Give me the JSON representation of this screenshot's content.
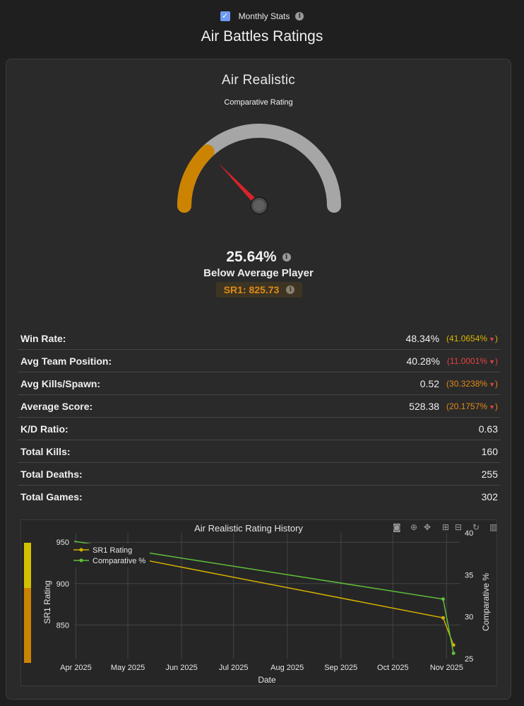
{
  "header": {
    "monthly_stats_label": "Monthly Stats",
    "monthly_stats_checked": true,
    "page_title": "Air Battles Ratings"
  },
  "card": {
    "mode_title": "Air Realistic",
    "gauge_label": "Comparative Rating",
    "gauge_value_fraction": 0.2564,
    "comparative_pct": "25.64%",
    "player_class": "Below Average Player",
    "sr1_text": "SR1: 825.73"
  },
  "colors": {
    "accent_orange": "#cc8400",
    "gauge_track": "#a6a6a6",
    "needle": "#d8232a",
    "delta_yellow": "#d9b400",
    "delta_orange": "#e08a16",
    "delta_red": "#e2433f",
    "sr1_line": "#d4b000",
    "comparative_line": "#5fbf3a"
  },
  "stats": [
    {
      "label": "Win Rate:",
      "value": "48.34%",
      "delta": "(41.0654%",
      "delta_color": "#d9b400"
    },
    {
      "label": "Avg Team Position:",
      "value": "40.28%",
      "delta": "(11.0001%",
      "delta_color": "#e2433f"
    },
    {
      "label": "Avg Kills/Spawn:",
      "value": "0.52",
      "delta": "(30.3238%",
      "delta_color": "#e08a16"
    },
    {
      "label": "Average Score:",
      "value": "528.38",
      "delta": "(20.1757%",
      "delta_color": "#e08a16"
    },
    {
      "label": "K/D Ratio:",
      "value": "0.63",
      "delta": "",
      "delta_color": ""
    },
    {
      "label": "Total Kills:",
      "value": "160",
      "delta": "",
      "delta_color": ""
    },
    {
      "label": "Total Deaths:",
      "value": "255",
      "delta": "",
      "delta_color": ""
    },
    {
      "label": "Total Games:",
      "value": "302",
      "delta": "",
      "delta_color": ""
    }
  ],
  "delta_arrow": "▼",
  "delta_close": ")",
  "modebar_icons": [
    "camera-icon",
    "zoom-icon",
    "pan-icon",
    "zoom-in-icon",
    "zoom-out-icon",
    "reset-axes-icon",
    "plotly-logo-icon"
  ],
  "chart_data": {
    "type": "line",
    "title": "Air Realistic Rating History",
    "xlabel": "Date",
    "ylabel": "SR1 Rating",
    "y2label": "Comparative %",
    "x_ticks": [
      "Apr 2025",
      "May 2025",
      "Jun 2025",
      "Jul 2025",
      "Aug 2025",
      "Sep 2025",
      "Oct 2025",
      "Nov 2025"
    ],
    "y_ticks": [
      850,
      900,
      950
    ],
    "y2_ticks": [
      25,
      30,
      35,
      40
    ],
    "ylim": [
      809.3,
      961.3
    ],
    "y2lim": [
      25.0,
      40.0
    ],
    "xlim": [
      "2025-03-31",
      "2025-11-09"
    ],
    "legend": "top-left",
    "grid": true,
    "series": [
      {
        "name": "SR1 Rating",
        "axis": "y",
        "color": "#d4b000",
        "x": [
          "2025-03-31",
          "2025-10-30",
          "2025-11-05"
        ],
        "values": [
          945.0,
          858.6,
          825.73
        ]
      },
      {
        "name": "Comparative %",
        "axis": "y2",
        "color": "#5fbf3a",
        "x": [
          "2025-03-31",
          "2025-10-30",
          "2025-11-05"
        ],
        "values": [
          39.0,
          32.1,
          25.64
        ]
      }
    ],
    "color_scale_colors": [
      "#d4c200",
      "#cc8400"
    ]
  }
}
